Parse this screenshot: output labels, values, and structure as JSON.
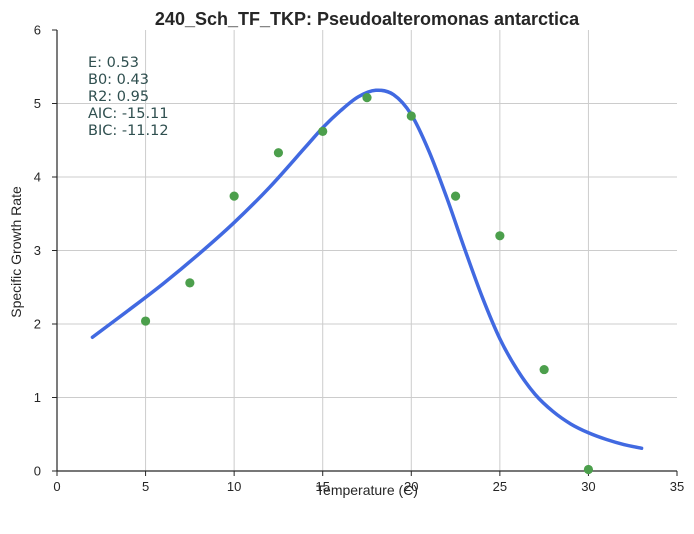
{
  "chart_data": {
    "type": "scatter",
    "title": "240_Sch_TF_TKP: Pseudoalteromonas antarctica",
    "xlabel": "Temperature (C)",
    "ylabel": "Specific Growth Rate",
    "xlim": [
      0,
      35
    ],
    "ylim": [
      0,
      6
    ],
    "xticks": [
      "0",
      "5",
      "10",
      "15",
      "20",
      "25",
      "30",
      "35"
    ],
    "yticks": [
      "0",
      "1",
      "2",
      "3",
      "4",
      "5",
      "6"
    ],
    "grid": true,
    "points": {
      "color": "#4c9f4c",
      "x": [
        5,
        7.5,
        10,
        12.5,
        15,
        17.5,
        20,
        22.5,
        25,
        27.5,
        30
      ],
      "y": [
        2.04,
        2.56,
        3.74,
        4.33,
        4.62,
        5.08,
        4.83,
        3.74,
        3.2,
        1.38,
        0.02
      ]
    },
    "fit": {
      "color": "#4169e1",
      "x": [
        2,
        4,
        6,
        8,
        10,
        12,
        14,
        15,
        16,
        17,
        18,
        19,
        20,
        21,
        22,
        23,
        24,
        25,
        26,
        27,
        28,
        29,
        30,
        31,
        32,
        33
      ],
      "y": [
        1.82,
        2.18,
        2.55,
        2.95,
        3.38,
        3.86,
        4.4,
        4.67,
        4.9,
        5.09,
        5.18,
        5.12,
        4.85,
        4.35,
        3.72,
        3.03,
        2.37,
        1.8,
        1.37,
        1.04,
        0.81,
        0.64,
        0.52,
        0.43,
        0.36,
        0.31
      ]
    },
    "annotations": [
      "E:  0.53",
      "B0:  0.43",
      "R2:  0.95",
      "AIC: -15.11",
      "BIC: -11.12"
    ]
  }
}
